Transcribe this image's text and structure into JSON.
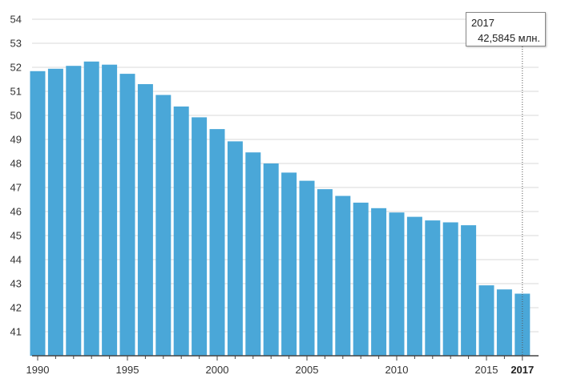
{
  "chart_data": {
    "type": "bar",
    "categories": [
      "1990",
      "1991",
      "1992",
      "1993",
      "1994",
      "1995",
      "1996",
      "1997",
      "1998",
      "1999",
      "2000",
      "2001",
      "2002",
      "2003",
      "2004",
      "2005",
      "2006",
      "2007",
      "2008",
      "2009",
      "2010",
      "2011",
      "2012",
      "2013",
      "2014",
      "2015",
      "2016",
      "2017"
    ],
    "values": [
      51.84,
      51.94,
      52.06,
      52.24,
      52.11,
      51.73,
      51.3,
      50.85,
      50.37,
      49.92,
      49.43,
      48.92,
      48.46,
      48.0,
      47.62,
      47.28,
      46.93,
      46.65,
      46.37,
      46.14,
      45.96,
      45.78,
      45.63,
      45.55,
      45.43,
      42.93,
      42.76,
      42.5845
    ],
    "x_tick_labels": [
      "1990",
      "1995",
      "2000",
      "2005",
      "2010",
      "2015"
    ],
    "x_tick_label_highlighted": "2017",
    "y_tick_labels": [
      "41",
      "42",
      "43",
      "44",
      "45",
      "46",
      "47",
      "48",
      "49",
      "50",
      "51",
      "52",
      "53",
      "54"
    ],
    "ylim": [
      40.5,
      54.5
    ],
    "grid": true,
    "bar_color": "#4aa7d8",
    "title": "",
    "xlabel": "",
    "ylabel": ""
  },
  "tooltip": {
    "year": "2017",
    "value": "42,5845 млн."
  }
}
